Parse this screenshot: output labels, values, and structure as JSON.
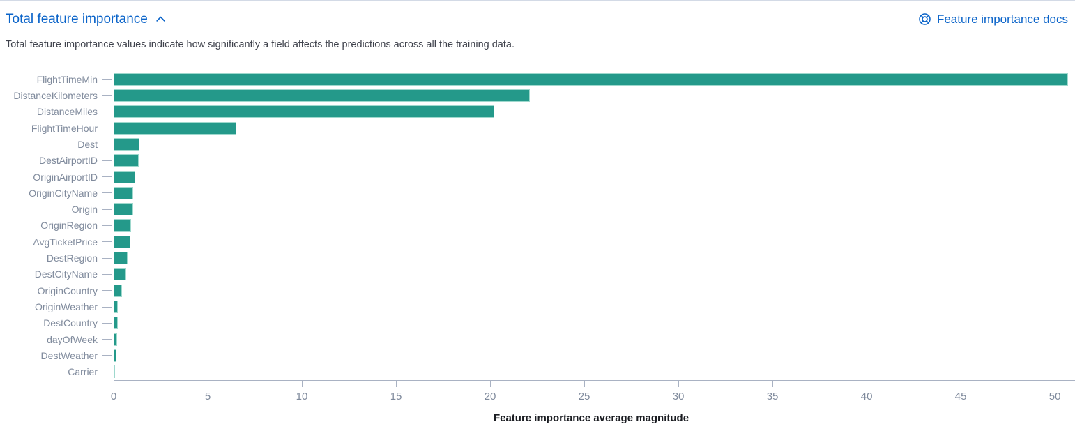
{
  "header": {
    "title": "Total feature importance",
    "collapse_icon": "chevron-up",
    "docs_link_label": "Feature importance docs",
    "docs_link_icon": "life-ring",
    "description": "Total feature importance values indicate how significantly a field affects the predictions across all the training data."
  },
  "colors": {
    "accent_blue": "#0b64c9",
    "bar_fill": "#24998a",
    "bar_edge": "#9ed8cd",
    "axis_line": "#a9b2c3",
    "axis_label_text": "#7f8a9c",
    "body_text": "#40434d",
    "axis_title_text": "#1a1c21",
    "top_border": "#d3dae6"
  },
  "chart_data": {
    "type": "bar",
    "orientation": "horizontal",
    "title": "",
    "xlabel": "Feature importance average magnitude",
    "ylabel": "",
    "xlim": [
      0,
      51.07
    ],
    "xticks": [
      0,
      5,
      10,
      15,
      20,
      25,
      30,
      35,
      40,
      45,
      50
    ],
    "grid": false,
    "legend": "none",
    "categories": [
      "FlightTimeMin",
      "DistanceKilometers",
      "DistanceMiles",
      "FlightTimeHour",
      "Dest",
      "DestAirportID",
      "OriginAirportID",
      "OriginCityName",
      "Origin",
      "OriginRegion",
      "AvgTicketPrice",
      "DestRegion",
      "DestCityName",
      "OriginCountry",
      "OriginWeather",
      "DestCountry",
      "dayOfWeek",
      "DestWeather",
      "Carrier"
    ],
    "values": [
      50.7,
      22.1,
      20.2,
      6.5,
      1.35,
      1.3,
      1.1,
      1.0,
      1.0,
      0.9,
      0.85,
      0.72,
      0.62,
      0.42,
      0.2,
      0.17,
      0.15,
      0.11,
      0.04
    ]
  }
}
